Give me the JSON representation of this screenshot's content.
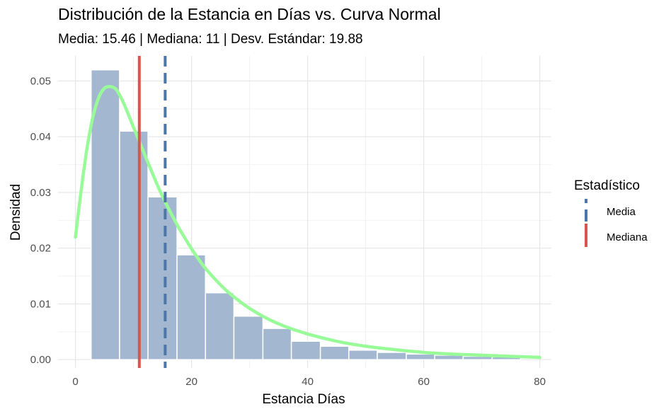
{
  "chart_data": {
    "type": "histogram",
    "title": "Distribución de la Estancia en Días vs. Curva Normal",
    "subtitle": "Media: 15.46 | Mediana: 11 | Desv. Estándar: 19.88",
    "xlabel": "Estancia Días",
    "ylabel": "Densidad",
    "xlim": [
      -3,
      82
    ],
    "ylim": [
      -0.0015,
      0.0545
    ],
    "x_ticks": [
      0,
      20,
      40,
      60,
      80
    ],
    "x_tick_labels": [
      "0",
      "20",
      "40",
      "60",
      "80"
    ],
    "y_ticks": [
      0.0,
      0.01,
      0.02,
      0.03,
      0.04,
      0.05
    ],
    "y_tick_labels": [
      "0.00",
      "0.01",
      "0.02",
      "0.03",
      "0.04",
      "0.05"
    ],
    "grid": true,
    "bins": [
      {
        "x0": 2.7,
        "x1": 7.6,
        "density": 0.052
      },
      {
        "x0": 7.6,
        "x1": 12.5,
        "density": 0.041
      },
      {
        "x0": 12.5,
        "x1": 17.5,
        "density": 0.0292
      },
      {
        "x0": 17.5,
        "x1": 22.4,
        "density": 0.0188
      },
      {
        "x0": 22.4,
        "x1": 27.3,
        "density": 0.012
      },
      {
        "x0": 27.3,
        "x1": 32.3,
        "density": 0.0078
      },
      {
        "x0": 32.3,
        "x1": 37.2,
        "density": 0.0056
      },
      {
        "x0": 37.2,
        "x1": 42.2,
        "density": 0.0033
      },
      {
        "x0": 42.2,
        "x1": 47.1,
        "density": 0.0024
      },
      {
        "x0": 47.1,
        "x1": 52.0,
        "density": 0.0017
      },
      {
        "x0": 52.0,
        "x1": 57.0,
        "density": 0.0013
      },
      {
        "x0": 57.0,
        "x1": 61.9,
        "density": 0.001
      },
      {
        "x0": 61.9,
        "x1": 66.8,
        "density": 0.0008
      },
      {
        "x0": 66.8,
        "x1": 71.8,
        "density": 0.0006
      },
      {
        "x0": 71.8,
        "x1": 76.7,
        "density": 0.0005
      }
    ],
    "curve": {
      "x": [
        0,
        1,
        2,
        3,
        4,
        5,
        6,
        7,
        8,
        9,
        10,
        11,
        12,
        13,
        14,
        15,
        16,
        17,
        18,
        20,
        22,
        24,
        26,
        28,
        30,
        33,
        36,
        40,
        45,
        50,
        55,
        60,
        65,
        70,
        75,
        80
      ],
      "y": [
        0.022,
        0.0305,
        0.038,
        0.0435,
        0.047,
        0.0487,
        0.049,
        0.0485,
        0.0467,
        0.0443,
        0.0417,
        0.0392,
        0.0366,
        0.0341,
        0.0316,
        0.0293,
        0.0272,
        0.0252,
        0.0233,
        0.0199,
        0.0169,
        0.0145,
        0.0124,
        0.0107,
        0.0092,
        0.0074,
        0.006,
        0.0046,
        0.0033,
        0.0024,
        0.0018,
        0.0013,
        0.001,
        0.0008,
        0.0006,
        0.0004
      ],
      "color": "#98FB98"
    },
    "vlines": [
      {
        "name": "Media",
        "x": 15.46,
        "color": "#4A76A8",
        "style": "dashed"
      },
      {
        "name": "Mediana",
        "x": 11,
        "color": "#D9534F",
        "style": "solid"
      }
    ],
    "bar_color": "#A3B8D0",
    "legend": {
      "title": "Estadístico",
      "placement": "right",
      "items": [
        {
          "label": "Media",
          "color": "#4A76A8"
        },
        {
          "label": "Mediana",
          "color": "#D9534F"
        }
      ]
    }
  }
}
